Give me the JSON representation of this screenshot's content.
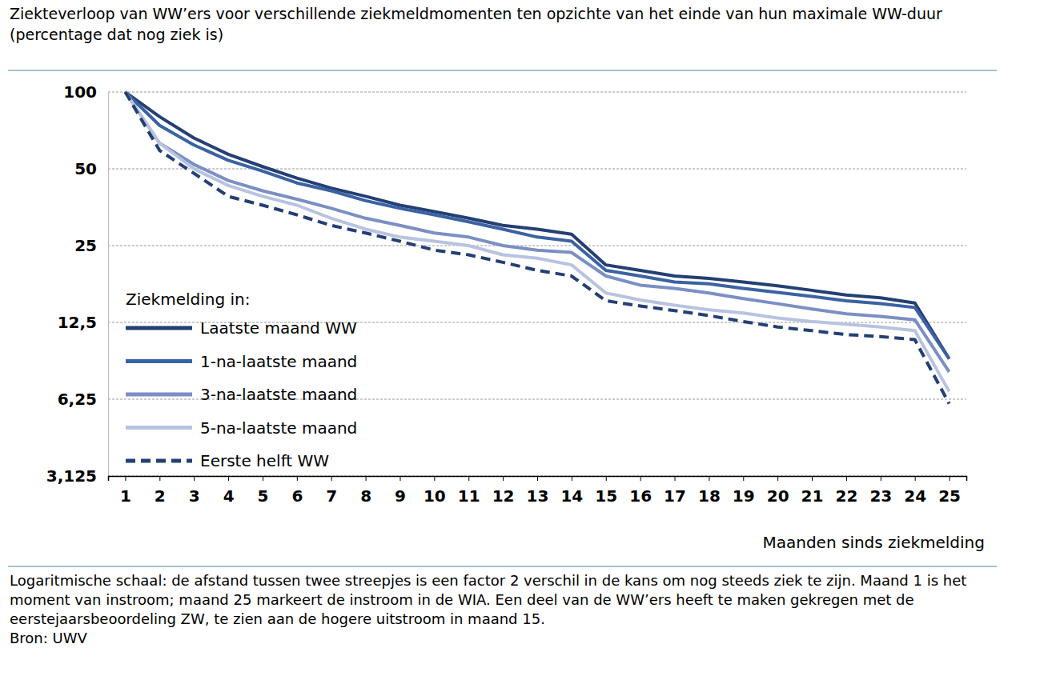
{
  "chart_data": {
    "type": "line",
    "title": "Ziekteverloop van WW’ers voor verschillende ziekmeldmomenten ten opzichte van het einde van hun maximale WW-duur (percentage dat nog ziek is)",
    "x_label": "Maanden sinds ziekmelding",
    "legend_title": "Ziekmelding in:",
    "annotations": [
      "Logaritmische schaal: de afstand tussen twee streepjes is een factor 2 verschil in de kans om nog steeds ziek te zijn. Maand 1 is het moment van instroom; maand 25 markeert de instroom in de WIA. Een deel van de WW’ers heeft te maken gekregen met de eerstejaarsbeoordeling ZW, te zien aan de hogere uitstroom in maand 15.",
      "Bron: UWV"
    ],
    "x": [
      1,
      2,
      3,
      4,
      5,
      6,
      7,
      8,
      9,
      10,
      11,
      12,
      13,
      14,
      15,
      16,
      17,
      18,
      19,
      20,
      21,
      22,
      23,
      24,
      25
    ],
    "series": [
      {
        "name": "Laatste maand WW",
        "color": "#243f73",
        "line_style": "solid",
        "values": [
          100,
          80,
          66,
          57,
          51,
          46,
          42,
          39,
          36,
          34,
          32,
          30,
          29,
          27.7,
          21,
          20,
          19,
          18.6,
          18,
          17.4,
          16.7,
          16,
          15.6,
          14.9,
          9
        ]
      },
      {
        "name": "1-na-laatste maand",
        "color": "#3b62a3",
        "line_style": "solid",
        "values": [
          100,
          74,
          62,
          54,
          49,
          44,
          41,
          37.5,
          35,
          33,
          31,
          29,
          27,
          26,
          20,
          19,
          18,
          17.7,
          17,
          16.4,
          15.8,
          15.2,
          14.8,
          14.3,
          9
        ]
      },
      {
        "name": "3-na-laatste maand",
        "color": "#7b8fc4",
        "line_style": "solid",
        "values": [
          100,
          63,
          52,
          45,
          41,
          38,
          35,
          32,
          30,
          28,
          27,
          25,
          24,
          23.5,
          19,
          17.5,
          17,
          16.3,
          15.5,
          14.8,
          14.1,
          13.5,
          13.2,
          12.8,
          8
        ]
      },
      {
        "name": "5-na-laatste maand",
        "color": "#b7c3e0",
        "line_style": "solid",
        "values": [
          100,
          63,
          50,
          43,
          39,
          36,
          32,
          29,
          27,
          26,
          25,
          23,
          22.3,
          21,
          16.3,
          15.3,
          14.6,
          14,
          13.6,
          13,
          12.6,
          12.3,
          12,
          11.6,
          6.7
        ]
      },
      {
        "name": "Eerste helft WW",
        "color": "#243f73",
        "line_style": "dashed",
        "values": [
          100,
          59,
          48,
          39,
          36,
          33,
          30,
          28,
          26,
          24,
          23,
          21.5,
          20,
          19,
          15.2,
          14.5,
          13.9,
          13.3,
          12.6,
          12,
          11.6,
          11.2,
          11,
          10.7,
          6
        ]
      }
    ],
    "xlim": [
      0.5,
      25.5
    ],
    "xticks": [
      1,
      2,
      3,
      4,
      5,
      6,
      7,
      8,
      9,
      10,
      11,
      12,
      13,
      14,
      15,
      16,
      17,
      18,
      19,
      20,
      21,
      22,
      23,
      24,
      25
    ],
    "ylim": [
      3.125,
      100
    ],
    "yticks": [
      100,
      50,
      25,
      {
        "value": 12.5,
        "label": "12,5"
      },
      {
        "value": 6.25,
        "label": "6,25"
      },
      {
        "value": 3.125,
        "label": "3,125"
      }
    ],
    "log": "y",
    "grid": true,
    "legend": "lower left"
  }
}
